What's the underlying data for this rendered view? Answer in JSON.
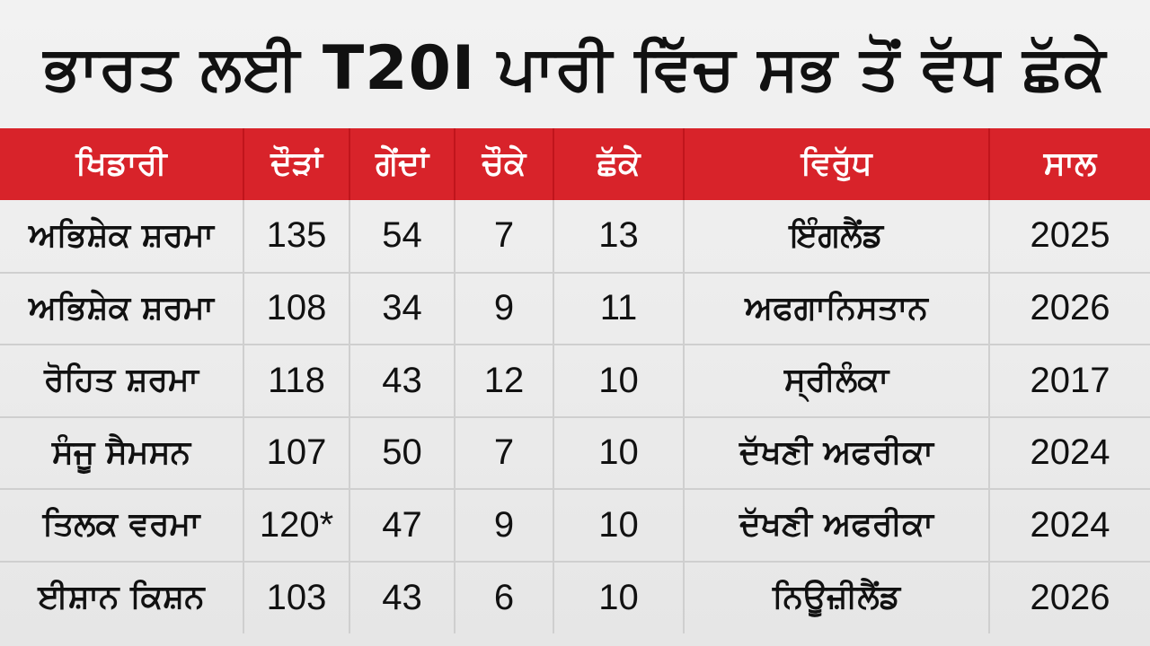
{
  "title": "ਭਾਰਤ ਲਈ T20I ਪਾਰੀ ਵਿੱਚ ਸਭ ਤੋਂ ਵੱਧ ਛੱਕੇ",
  "table": {
    "headers": {
      "player": "ਖਿਡਾਰੀ",
      "runs": "ਦੌੜਾਂ",
      "balls": "ਗੇਂਦਾਂ",
      "fours": "ਚੌਕੇ",
      "sixes": "ਛੱਕੇ",
      "against": "ਵਿਰੁੱਧ",
      "year": "ਸਾਲ"
    },
    "rows": [
      {
        "player": "ਅਭਿਸ਼ੇਕ ਸ਼ਰਮਾ",
        "runs": "135",
        "balls": "54",
        "fours": "7",
        "sixes": "13",
        "against": "ਇੰਗਲੈਂਡ",
        "year": "2025"
      },
      {
        "player": "ਅਭਿਸ਼ੇਕ ਸ਼ਰਮਾ",
        "runs": "108",
        "balls": "34",
        "fours": "9",
        "sixes": "11",
        "against": "ਅਫਗਾਨਿਸਤਾਨ",
        "year": "2026"
      },
      {
        "player": "ਰੋਹਿਤ ਸ਼ਰਮਾ",
        "runs": "118",
        "balls": "43",
        "fours": "12",
        "sixes": "10",
        "against": "ਸ੍ਰੀਲੰਕਾ",
        "year": "2017"
      },
      {
        "player": "ਸੰਜੂ ਸੈਮਸਨ",
        "runs": "107",
        "balls": "50",
        "fours": "7",
        "sixes": "10",
        "against": "ਦੱਖਣੀ ਅਫਰੀਕਾ",
        "year": "2024"
      },
      {
        "player": "ਤਿਲਕ ਵਰਮਾ",
        "runs": "120*",
        "balls": "47",
        "fours": "9",
        "sixes": "10",
        "against": "ਦੱਖਣੀ ਅਫਰੀਕਾ",
        "year": "2024"
      },
      {
        "player": "ਈਸ਼ਾਨ ਕਿਸ਼ਨ",
        "runs": "103",
        "balls": "43",
        "fours": "6",
        "sixes": "10",
        "against": "ਨਿਊਜ਼ੀਲੈਂਡ",
        "year": "2026"
      }
    ]
  },
  "colors": {
    "header_bg": "#d8232a",
    "header_text": "#ffffff",
    "page_bg": "#ececec",
    "grid": "#cfcfcf"
  }
}
